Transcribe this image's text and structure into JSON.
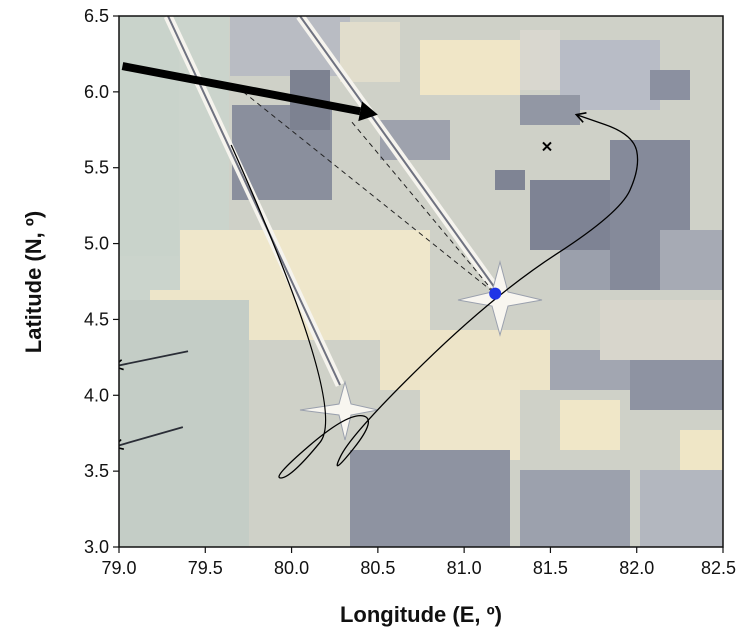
{
  "chart_data": {
    "type": "scatter",
    "title": "",
    "xlabel": "Longitude (E, º)",
    "ylabel": "Latitude (N, º)",
    "xlim": [
      79.0,
      82.5
    ],
    "ylim": [
      3.0,
      6.5
    ],
    "x_ticks": [
      "79.0",
      "79.5",
      "80.0",
      "80.5",
      "81.0",
      "81.5",
      "82.0",
      "82.5"
    ],
    "y_ticks": [
      "3.0",
      "3.5",
      "4.0",
      "4.5",
      "5.0",
      "5.5",
      "6.0",
      "6.5"
    ],
    "grid": false,
    "background": "shaded map with pale-yellow, light-grey and slate-blue blocks",
    "points": [
      {
        "name": "blue-dot",
        "x": 81.18,
        "y": 4.67,
        "marker": "circle",
        "color": "#1f35e6"
      },
      {
        "name": "x-marker",
        "x": 81.48,
        "y": 5.64,
        "marker": "x",
        "color": "#000000"
      }
    ],
    "track": {
      "color": "#000000",
      "points": [
        [
          79.65,
          5.65
        ],
        [
          80.33,
          3.92
        ],
        [
          80.0,
          3.46
        ],
        [
          79.88,
          3.45
        ],
        [
          80.32,
          3.88
        ],
        [
          80.5,
          3.85
        ],
        [
          80.22,
          3.45
        ],
        [
          80.35,
          3.75
        ],
        [
          81.18,
          4.67
        ],
        [
          81.9,
          5.2
        ],
        [
          82.02,
          5.5
        ],
        [
          81.98,
          5.72
        ],
        [
          81.65,
          5.85
        ]
      ]
    },
    "dashed_lines": [
      {
        "from": [
          79.72,
          6.0
        ],
        "to": [
          81.18,
          4.67
        ]
      },
      {
        "from": [
          80.35,
          5.8
        ],
        "to": [
          81.18,
          4.67
        ]
      }
    ],
    "thick_arrow": {
      "from": [
        79.02,
        6.17
      ],
      "to": [
        80.5,
        5.85
      ]
    },
    "small_arrows": [
      {
        "from": [
          79.4,
          4.29
        ],
        "to": [
          78.97,
          4.19
        ]
      },
      {
        "from": [
          79.37,
          3.79
        ],
        "to": [
          78.97,
          3.66
        ]
      }
    ]
  }
}
